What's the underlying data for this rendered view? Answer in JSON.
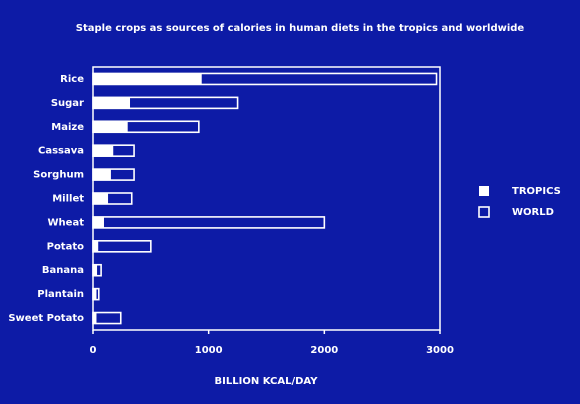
{
  "chart_data": {
    "type": "bar",
    "orientation": "horizontal",
    "overlap": true,
    "title": "Staple crops as sources of calories in human diets in the tropics and worldwide",
    "x_label": "BILLION KCAL/DAY",
    "categories": [
      "Rice",
      "Sugar",
      "Maize",
      "Cassava",
      "Sorghum",
      "Millet",
      "Wheat",
      "Potato",
      "Banana",
      "Plantain",
      "Sweet Potato"
    ],
    "series": [
      {
        "name": "TROPICS",
        "color": "#ffffff",
        "style": "filled",
        "values": [
          940,
          320,
          300,
          175,
          155,
          130,
          95,
          45,
          35,
          30,
          30
        ]
      },
      {
        "name": "WORLD",
        "color": "#ffffff",
        "style": "outline",
        "values": [
          2970,
          1250,
          915,
          355,
          355,
          335,
          2000,
          500,
          70,
          50,
          240
        ]
      }
    ],
    "xlim": [
      0,
      3000
    ],
    "xticks": [
      0,
      1000,
      2000,
      3000
    ],
    "background": "#0d1ba6",
    "legend": "right"
  }
}
